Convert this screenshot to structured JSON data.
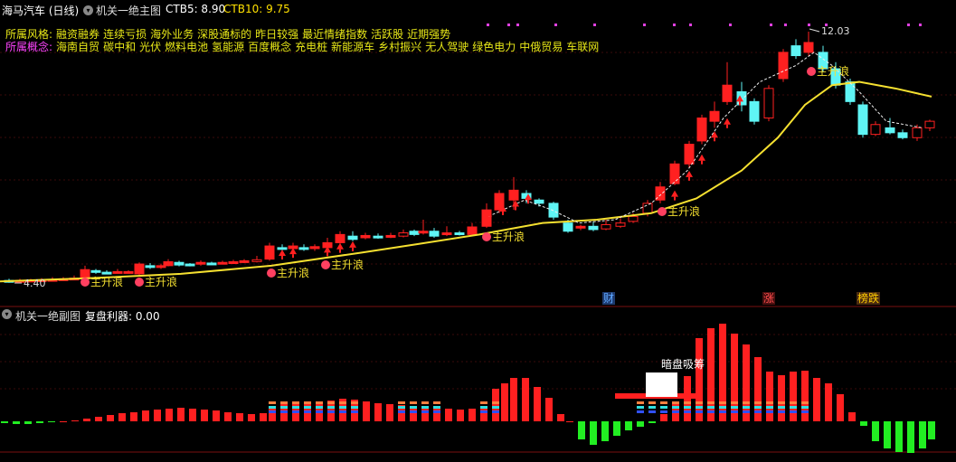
{
  "header": {
    "stock_title": "海马汽车 (日线)",
    "main_indicator": "机关一绝主图",
    "ctb5_label": "CTB5: 8.90",
    "ctb10_label": "CTB10: 9.75"
  },
  "style_row": {
    "label": "所属风格:",
    "tags": [
      "融资融券",
      "连续亏损",
      "海外业务",
      "深股通标的",
      "昨日较强",
      "最近情绪指数",
      "活跃股",
      "近期强势"
    ]
  },
  "concept_row": {
    "label": "所属概念:",
    "tags": [
      "海南自贸",
      "碳中和",
      "光伏",
      "燃料电池",
      "氢能源",
      "百度概念",
      "充电桩",
      "新能源车",
      "乡村振兴",
      "无人驾驶",
      "绿色电力",
      "中俄贸易",
      "车联网"
    ]
  },
  "main_chart": {
    "high_label": "12.03",
    "low_label": "4.40",
    "wave_label": "主升浪",
    "markers": [
      {
        "text": "财",
        "color": "#5fa8ff"
      },
      {
        "text": "涨",
        "color": "#ff4d4d"
      },
      {
        "text": "榜跌",
        "color": "#ffcc00"
      }
    ]
  },
  "sub_chart": {
    "title": "机关一绝副图",
    "value_label": "复盘利器: 0.00",
    "annotation": "暗盘吸筹"
  },
  "colors": {
    "up": "#ff2020",
    "down": "#5ff5f5",
    "ma": "#f5e030",
    "neg_bar": "#22ee22",
    "style_label": "#e8e818",
    "concept_label": "#ff44ff"
  }
}
